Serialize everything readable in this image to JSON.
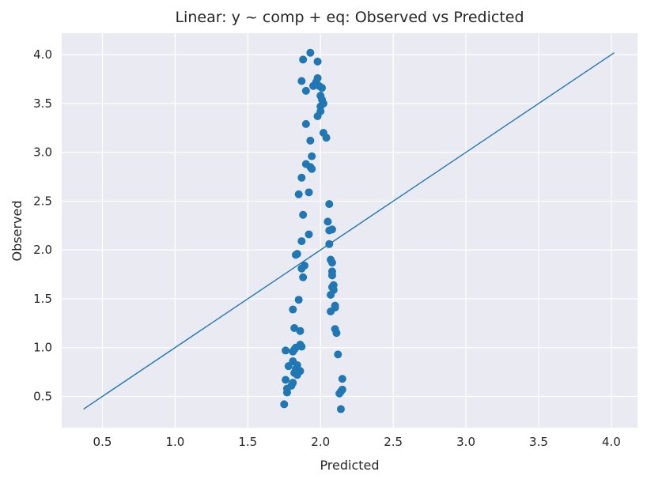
{
  "chart_data": {
    "type": "scatter",
    "title": "Linear: y ~ comp + eq: Observed vs Predicted",
    "xlabel": "Predicted",
    "ylabel": "Observed",
    "xlim": [
      0.22,
      4.18
    ],
    "ylim": [
      0.18,
      4.22
    ],
    "xticks": [
      0.5,
      1.0,
      1.5,
      2.0,
      2.5,
      3.0,
      3.5,
      4.0
    ],
    "xtick_labels": [
      "0.5",
      "1.0",
      "1.5",
      "2.0",
      "2.5",
      "3.0",
      "3.5",
      "4.0"
    ],
    "yticks": [
      0.5,
      1.0,
      1.5,
      2.0,
      2.5,
      3.0,
      3.5,
      4.0
    ],
    "ytick_labels": [
      "0.5",
      "1.0",
      "1.5",
      "2.0",
      "2.5",
      "3.0",
      "3.5",
      "4.0"
    ],
    "grid": true,
    "colors": {
      "background": "#eaeaf2",
      "grid": "#ffffff",
      "points": "#1f77b4",
      "line": "#1f77b4"
    },
    "reference_line": {
      "x": [
        0.37,
        4.02
      ],
      "y": [
        0.37,
        4.02
      ]
    },
    "points": [
      [
        1.93,
        4.02
      ],
      [
        1.88,
        3.95
      ],
      [
        1.98,
        3.93
      ],
      [
        1.87,
        3.73
      ],
      [
        1.98,
        3.76
      ],
      [
        1.97,
        3.72
      ],
      [
        1.95,
        3.68
      ],
      [
        1.99,
        3.68
      ],
      [
        2.01,
        3.66
      ],
      [
        1.9,
        3.63
      ],
      [
        2.0,
        3.58
      ],
      [
        2.01,
        3.54
      ],
      [
        2.02,
        3.5
      ],
      [
        2.0,
        3.47
      ],
      [
        2.0,
        3.42
      ],
      [
        1.98,
        3.37
      ],
      [
        1.9,
        3.29
      ],
      [
        2.02,
        3.2
      ],
      [
        2.04,
        3.15
      ],
      [
        1.93,
        3.12
      ],
      [
        1.94,
        2.96
      ],
      [
        1.9,
        2.88
      ],
      [
        1.93,
        2.85
      ],
      [
        1.94,
        2.83
      ],
      [
        1.87,
        2.74
      ],
      [
        1.92,
        2.59
      ],
      [
        1.85,
        2.57
      ],
      [
        2.06,
        2.47
      ],
      [
        1.88,
        2.36
      ],
      [
        2.05,
        2.29
      ],
      [
        2.08,
        2.21
      ],
      [
        2.06,
        2.2
      ],
      [
        1.92,
        2.16
      ],
      [
        1.87,
        2.09
      ],
      [
        2.06,
        2.06
      ],
      [
        1.83,
        1.95
      ],
      [
        1.84,
        1.96
      ],
      [
        2.07,
        1.9
      ],
      [
        2.08,
        1.87
      ],
      [
        1.89,
        1.84
      ],
      [
        1.87,
        1.81
      ],
      [
        2.08,
        1.78
      ],
      [
        2.08,
        1.74
      ],
      [
        1.88,
        1.72
      ],
      [
        2.09,
        1.64
      ],
      [
        2.08,
        1.62
      ],
      [
        2.09,
        1.59
      ],
      [
        2.07,
        1.54
      ],
      [
        1.85,
        1.49
      ],
      [
        2.1,
        1.43
      ],
      [
        2.1,
        1.41
      ],
      [
        1.81,
        1.39
      ],
      [
        2.07,
        1.37
      ],
      [
        1.82,
        1.2
      ],
      [
        2.1,
        1.19
      ],
      [
        1.86,
        1.17
      ],
      [
        2.11,
        1.15
      ],
      [
        1.86,
        1.03
      ],
      [
        1.87,
        1.01
      ],
      [
        1.83,
        1.0
      ],
      [
        1.82,
        0.98
      ],
      [
        1.81,
        0.96
      ],
      [
        1.76,
        0.97
      ],
      [
        2.12,
        0.93
      ],
      [
        1.81,
        0.86
      ],
      [
        1.84,
        0.82
      ],
      [
        1.78,
        0.81
      ],
      [
        1.83,
        0.78
      ],
      [
        1.86,
        0.76
      ],
      [
        1.82,
        0.74
      ],
      [
        1.84,
        0.72
      ],
      [
        1.76,
        0.67
      ],
      [
        2.15,
        0.68
      ],
      [
        1.81,
        0.64
      ],
      [
        1.8,
        0.61
      ],
      [
        2.15,
        0.57
      ],
      [
        2.14,
        0.55
      ],
      [
        2.13,
        0.53
      ],
      [
        1.77,
        0.58
      ],
      [
        1.77,
        0.54
      ],
      [
        1.75,
        0.42
      ],
      [
        2.14,
        0.37
      ]
    ]
  }
}
